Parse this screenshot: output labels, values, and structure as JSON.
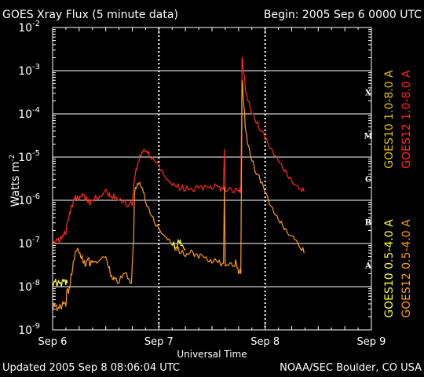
{
  "chart_data": {
    "type": "line",
    "title": "GOES Xray Flux (5 minute data)",
    "begin_label": "Begin:  2005 Sep 6 0000 UTC",
    "ylabel": "Watts m",
    "ylabel_sup": "-2",
    "xlabel": "Universal Time",
    "y_scale": "log",
    "ylim": [
      1e-09,
      0.01
    ],
    "y_ticks": [
      {
        "base": "10",
        "exp": "-2",
        "value": 0.01
      },
      {
        "base": "10",
        "exp": "-3",
        "value": 0.001
      },
      {
        "base": "10",
        "exp": "-4",
        "value": 0.0001
      },
      {
        "base": "10",
        "exp": "-5",
        "value": 1e-05
      },
      {
        "base": "10",
        "exp": "-6",
        "value": 1e-06
      },
      {
        "base": "10",
        "exp": "-7",
        "value": 1e-07
      },
      {
        "base": "10",
        "exp": "-8",
        "value": 1e-08
      },
      {
        "base": "10",
        "exp": "-9",
        "value": 1e-09
      }
    ],
    "x_ticks": [
      {
        "label": "Sep 6",
        "value": 0
      },
      {
        "label": "Sep 7",
        "value": 24
      },
      {
        "label": "Sep 8",
        "value": 48
      },
      {
        "label": "Sep 9",
        "value": 72
      }
    ],
    "xlim": [
      0,
      72
    ],
    "flare_classes": [
      {
        "label": "X",
        "value": 0.0001
      },
      {
        "label": "M",
        "value": 1e-05
      },
      {
        "label": "C",
        "value": 1e-06
      },
      {
        "label": "B",
        "value": 1e-07
      },
      {
        "label": "A",
        "value": 1e-08
      }
    ],
    "legend": [
      {
        "name": "GOES10 1.0-8.0 A",
        "color": "#e8c000"
      },
      {
        "name": "GOES12 1.0-8.0 A",
        "color": "#ff2a1a"
      },
      {
        "name": "GOES10 0.5-4.0 A",
        "color": "#ffff33"
      },
      {
        "name": "GOES12 0.5-4.0 A",
        "color": "#ff9a1a"
      }
    ],
    "grid": true,
    "series": [
      {
        "name": "GOES12 1.0-8.0 A",
        "color": "#ff2a1a",
        "points": [
          [
            0,
            1.1e-07
          ],
          [
            0.5,
            1e-07
          ],
          [
            1,
            1.2e-07
          ],
          [
            1.5,
            1e-07
          ],
          [
            2,
            1.3e-07
          ],
          [
            2.5,
            1.5e-07
          ],
          [
            3,
            1.6e-07
          ],
          [
            3.3,
            3e-07
          ],
          [
            3.6,
            3.5e-07
          ],
          [
            4,
            5e-07
          ],
          [
            4.5,
            7e-07
          ],
          [
            5,
            1e-06
          ],
          [
            5.5,
            1.1e-06
          ],
          [
            6,
            1e-06
          ],
          [
            6.5,
            1.2e-06
          ],
          [
            7,
            1.3e-06
          ],
          [
            7.5,
            1e-06
          ],
          [
            8,
            9e-07
          ],
          [
            8.5,
            8e-07
          ],
          [
            9,
            1e-06
          ],
          [
            10,
            1.1e-06
          ],
          [
            11,
            1.2e-06
          ],
          [
            12,
            1.8e-06
          ],
          [
            12.5,
            1.3e-06
          ],
          [
            13,
            1.2e-06
          ],
          [
            13.5,
            1.1e-06
          ],
          [
            14,
            1.1e-06
          ],
          [
            15,
            1e-06
          ],
          [
            16,
            9e-07
          ],
          [
            17,
            7e-07
          ],
          [
            18,
            7.5e-07
          ],
          [
            18.5,
            3e-06
          ],
          [
            19,
            5e-06
          ],
          [
            19.5,
            8e-06
          ],
          [
            20,
            1.1e-05
          ],
          [
            20.5,
            1.4e-05
          ],
          [
            21,
            1.3e-05
          ],
          [
            21.5,
            1.2e-05
          ],
          [
            22,
            1e-05
          ],
          [
            23,
            8e-06
          ],
          [
            24,
            6e-06
          ],
          [
            25,
            4e-06
          ],
          [
            26,
            3e-06
          ],
          [
            27,
            2.2e-06
          ],
          [
            28,
            2e-06
          ],
          [
            29,
            1.8e-06
          ],
          [
            30,
            1.7e-06
          ],
          [
            31,
            1.8e-06
          ],
          [
            32,
            1.6e-06
          ],
          [
            33,
            1.9e-06
          ],
          [
            34,
            1.7e-06
          ],
          [
            35,
            2e-06
          ],
          [
            36,
            1.8e-06
          ],
          [
            37,
            2.2e-06
          ],
          [
            38,
            1.6e-06
          ],
          [
            38.6,
            1.8e-06
          ],
          [
            38.8,
            1.5e-05
          ],
          [
            39,
            1.6e-06
          ],
          [
            40,
            2e-06
          ],
          [
            41,
            1.5e-06
          ],
          [
            41.5,
            1.9e-06
          ],
          [
            42,
            1.7e-06
          ],
          [
            42.5,
            1.5e-06
          ],
          [
            42.8,
            0.002
          ],
          [
            43,
            0.0012
          ],
          [
            43.5,
            0.0004
          ],
          [
            44,
            0.0002
          ],
          [
            45,
            0.0001
          ],
          [
            46,
            6e-05
          ],
          [
            47,
            4e-05
          ],
          [
            48,
            2.5e-05
          ],
          [
            49,
            1.6e-05
          ],
          [
            50,
            1.1e-05
          ],
          [
            51,
            8e-06
          ],
          [
            52,
            5.5e-06
          ],
          [
            53,
            3.8e-06
          ],
          [
            54,
            2.8e-06
          ],
          [
            55,
            2.2e-06
          ],
          [
            56,
            1.8e-06
          ],
          [
            56.8,
            1.6e-06
          ]
        ]
      },
      {
        "name": "GOES12 0.5-4.0 A",
        "color": "#ff9a1a",
        "points": [
          [
            0,
            3e-09
          ],
          [
            0.5,
            3.5e-09
          ],
          [
            1,
            2.8e-09
          ],
          [
            1.5,
            3.2e-09
          ],
          [
            2,
            3e-09
          ],
          [
            2.5,
            4e-09
          ],
          [
            3,
            3.5e-09
          ],
          [
            3.3,
            9e-09
          ],
          [
            3.6,
            7e-09
          ],
          [
            4,
            1.2e-08
          ],
          [
            4.5,
            2.5e-08
          ],
          [
            5,
            5e-08
          ],
          [
            5.5,
            7e-08
          ],
          [
            6,
            6e-08
          ],
          [
            6.5,
            4.5e-08
          ],
          [
            7,
            3.5e-08
          ],
          [
            7.5,
            3e-08
          ],
          [
            8,
            4.5e-08
          ],
          [
            8.5,
            3e-08
          ],
          [
            9,
            4e-08
          ],
          [
            10,
            3.5e-08
          ],
          [
            11,
            4.5e-08
          ],
          [
            12,
            5e-08
          ],
          [
            12.5,
            3e-08
          ],
          [
            13,
            2e-08
          ],
          [
            13.5,
            1.5e-08
          ],
          [
            14,
            1.5e-08
          ],
          [
            15,
            1.2e-08
          ],
          [
            16,
            2e-08
          ],
          [
            17,
            1.5e-08
          ],
          [
            17.8,
            1.2e-08
          ],
          [
            18.3,
            1.3e-07
          ],
          [
            18.5,
            1.4e-06
          ],
          [
            19,
            2e-06
          ],
          [
            19.5,
            2.5e-06
          ],
          [
            20,
            2e-06
          ],
          [
            20.5,
            1.5e-06
          ],
          [
            21,
            9e-07
          ],
          [
            22,
            5e-07
          ],
          [
            23,
            3e-07
          ],
          [
            24,
            2.2e-07
          ],
          [
            25,
            1.6e-07
          ],
          [
            26,
            1.2e-07
          ],
          [
            27,
            9e-08
          ],
          [
            28,
            7e-08
          ],
          [
            29,
            6e-08
          ],
          [
            30,
            5e-08
          ],
          [
            31,
            6e-08
          ],
          [
            32,
            5e-08
          ],
          [
            33,
            4.5e-08
          ],
          [
            34,
            5e-08
          ],
          [
            35,
            4e-08
          ],
          [
            36,
            3.5e-08
          ],
          [
            37,
            4e-08
          ],
          [
            38,
            3e-08
          ],
          [
            38.6,
            3.5e-08
          ],
          [
            38.8,
            2e-06
          ],
          [
            39,
            3e-08
          ],
          [
            40,
            3.5e-08
          ],
          [
            41,
            3e-08
          ],
          [
            41.5,
            3.5e-08
          ],
          [
            42,
            2e-08
          ],
          [
            42.5,
            2e-08
          ],
          [
            42.8,
            0.0006
          ],
          [
            43,
            0.0003
          ],
          [
            43.5,
            5e-05
          ],
          [
            44,
            2e-05
          ],
          [
            45,
            8e-06
          ],
          [
            46,
            4e-06
          ],
          [
            47,
            2.5e-06
          ],
          [
            48,
            1.5e-06
          ],
          [
            49,
            8e-07
          ],
          [
            50,
            5e-07
          ],
          [
            51,
            3.5e-07
          ],
          [
            52,
            2.5e-07
          ],
          [
            53,
            1.8e-07
          ],
          [
            54,
            1.5e-07
          ],
          [
            55,
            1.2e-07
          ],
          [
            56,
            7.5e-08
          ],
          [
            56.8,
            6e-08
          ]
        ]
      },
      {
        "name": "GOES10 0.5-4.0 A",
        "color": "#ffff33",
        "points": [
          [
            0,
            1e-08
          ],
          [
            0.5,
            1.3e-08
          ],
          [
            1,
            1e-08
          ],
          [
            1.5,
            1.2e-08
          ],
          [
            2,
            1e-08
          ],
          [
            2.5,
            1.3e-08
          ],
          [
            3,
            1.1e-08
          ],
          [
            3.3,
            1.2e-08
          ],
          [
            27,
            9e-08
          ],
          [
            28,
            8e-08
          ],
          [
            28.5,
            1.1e-07
          ],
          [
            29,
            9e-08
          ],
          [
            30,
            7e-08
          ]
        ]
      }
    ]
  },
  "footer": {
    "updated": "Updated 2005 Sep  8 08:06:04 UTC",
    "credit": "NOAA/SEC Boulder, CO USA"
  }
}
